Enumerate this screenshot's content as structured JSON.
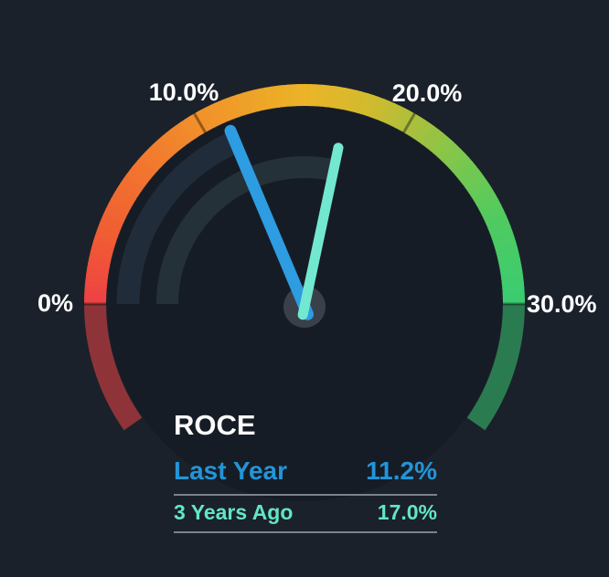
{
  "widget": {
    "title": "ROCE"
  },
  "legend": {
    "title": "ROCE",
    "rows": [
      {
        "label": "Last Year",
        "value": "11.2%"
      },
      {
        "label": "3 Years Ago",
        "value": "17.0%"
      }
    ]
  },
  "chart_data": {
    "type": "gauge",
    "title": "ROCE",
    "unit": "%",
    "min": 0,
    "max": 30,
    "start_angle_deg": 180,
    "end_angle_deg": 0,
    "overflow_extension_deg": 35,
    "ticks": [
      0,
      10,
      20,
      30
    ],
    "tick_labels": [
      "0%",
      "10.0%",
      "20.0%",
      "30.0%"
    ],
    "series": [
      {
        "name": "Last Year",
        "value": 11.2,
        "display": "11.2%",
        "needle_color": "#2d9ce1",
        "track_color": "#202c39",
        "text_color": "#2295d8"
      },
      {
        "name": "3 Years Ago",
        "value": 17.0,
        "display": "17.0%",
        "needle_color": "#72e8d1",
        "track_color": "#243139",
        "text_color": "#63e6c2"
      }
    ],
    "band_gradient_stops": [
      {
        "value": 0,
        "color": "#ee4145"
      },
      {
        "value": 3,
        "color": "#f05b33"
      },
      {
        "value": 7,
        "color": "#f2782e"
      },
      {
        "value": 10,
        "color": "#f1902b"
      },
      {
        "value": 13,
        "color": "#eda627"
      },
      {
        "value": 15,
        "color": "#ecb428"
      },
      {
        "value": 18,
        "color": "#d2ba2e"
      },
      {
        "value": 20,
        "color": "#aebf3b"
      },
      {
        "value": 23,
        "color": "#79c84d"
      },
      {
        "value": 26,
        "color": "#50ca60"
      },
      {
        "value": 30,
        "color": "#39cc72"
      }
    ],
    "colors": {
      "background": "#1a212b",
      "plot_disc": "#161c25",
      "under_min_band": "#8e3438",
      "over_max_band": "#2b7b51",
      "tick_line": "rgba(0,0,0,0.38)",
      "hub": "#3a4049",
      "divider": "rgba(148,156,166,0.8)",
      "title_text": "#fafbfc",
      "tick_label_text": "#ffffff"
    }
  }
}
